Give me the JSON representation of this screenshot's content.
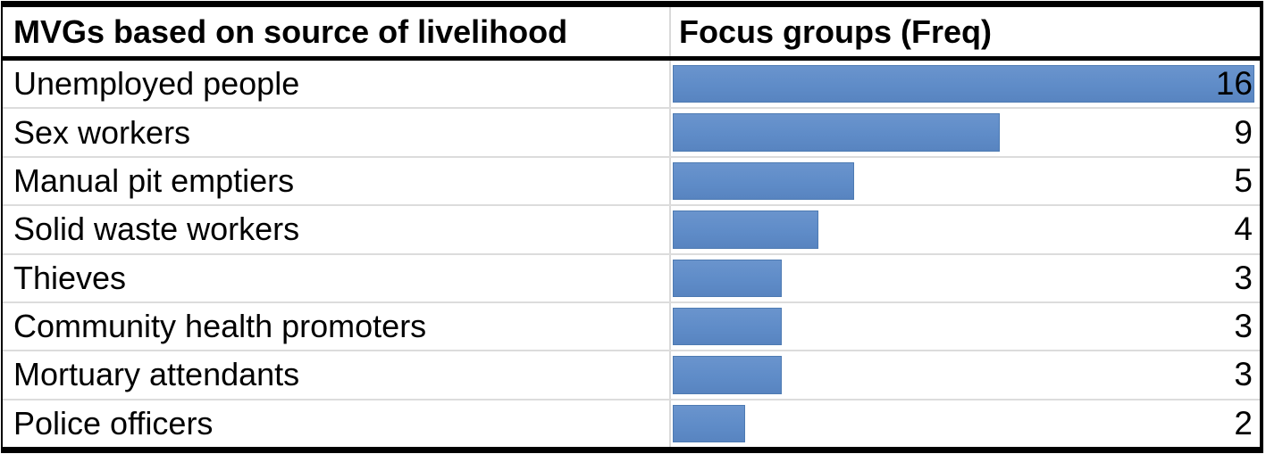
{
  "table": {
    "headers": {
      "category": "MVGs based on source of livelihood",
      "freq": "Focus groups (Freq)"
    }
  },
  "chart_data": {
    "type": "bar",
    "orientation": "horizontal",
    "title": "",
    "categories": [
      "Unemployed people",
      "Sex workers",
      "Manual pit emptiers",
      "Solid waste workers",
      "Thieves",
      "Community health promoters",
      "Mortuary attendants",
      "Police officers"
    ],
    "values": [
      16,
      9,
      5,
      4,
      3,
      3,
      3,
      2
    ],
    "xlabel": "Focus groups (Freq)",
    "ylabel": "MVGs based on source of livelihood",
    "xlim": [
      0,
      16
    ],
    "grid": false,
    "legend": "none",
    "bar_color": "#5f8cc8"
  },
  "colors": {
    "bar_fill": "#5f8cc8",
    "bar_border": "#4d7ab2",
    "gridline": "#dcdcdc",
    "outer_border": "#000000",
    "text": "#000000",
    "background": "#ffffff"
  }
}
